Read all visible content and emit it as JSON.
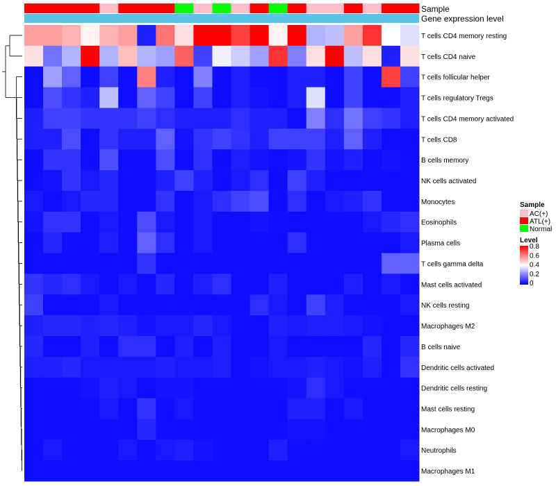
{
  "chart_data": {
    "type": "heatmap",
    "title": "",
    "annotation_labels": [
      "Sample",
      "Gene expression level"
    ],
    "rows": [
      "T cells CD4 memory resting",
      "T cells CD4 naive",
      "T cells follicular helper",
      "T cells regulatory  Tregs",
      "T cells CD4 memory activated",
      "T cells CD8",
      "B cells memory",
      "NK cells activated",
      "Monocytes",
      "Eosinophils",
      "Plasma cells",
      "T cells gamma delta",
      "Mast cells activated",
      "NK cells resting",
      "Macrophages M2",
      "B cells naive",
      "Dendritic cells activated",
      "Dendritic cells resting",
      "Mast cells resting",
      "Macrophages M0",
      "Neutrophils",
      "Macrophages M1"
    ],
    "samples": [
      "ATL(+)",
      "ATL(+)",
      "ATL(+)",
      "ATL(+)",
      "AC(+)",
      "ATL(+)",
      "ATL(+)",
      "ATL(+)",
      "Normal",
      "AC(+)",
      "Normal",
      "AC(+)",
      "ATL(+)",
      "Normal",
      "ATL(+)",
      "AC(+)",
      "AC(+)",
      "ATL(+)",
      "AC(+)",
      "ATL(+)",
      "ATL(+)"
    ],
    "sample_colors": {
      "AC(+)": "#ffc0cb",
      "ATL(+)": "#ff0000",
      "Normal": "#00ff00"
    },
    "level_color": "#5bc4e6",
    "values": [
      [
        0.55,
        0.55,
        0.52,
        0.42,
        0.52,
        0.55,
        0.05,
        0.62,
        0.45,
        0.8,
        0.8,
        0.7,
        0.8,
        0.42,
        0.8,
        0.28,
        0.3,
        0.55,
        0.72,
        0.4,
        0.35
      ],
      [
        0.45,
        0.18,
        0.28,
        0.8,
        0.28,
        0.5,
        0.28,
        0.25,
        0.65,
        0.1,
        0.38,
        0.32,
        0.25,
        0.72,
        0.2,
        0.45,
        0.8,
        0.3,
        0.45,
        0.05,
        0.45
      ],
      [
        0.02,
        0.25,
        0.15,
        0.02,
        0.1,
        0.02,
        0.6,
        0.05,
        0.02,
        0.2,
        0.02,
        0.05,
        0.02,
        0.02,
        0.05,
        0.05,
        0.02,
        0.1,
        0.02,
        0.7,
        0.1
      ],
      [
        0.02,
        0.12,
        0.08,
        0.05,
        0.3,
        0.02,
        0.15,
        0.1,
        0.02,
        0.1,
        0.02,
        0.05,
        0.03,
        0.02,
        0.05,
        0.35,
        0.02,
        0.1,
        0.02,
        0.02,
        0.05
      ],
      [
        0.05,
        0.1,
        0.1,
        0.08,
        0.08,
        0.08,
        0.1,
        0.07,
        0.05,
        0.05,
        0.05,
        0.07,
        0.05,
        0.05,
        0.02,
        0.2,
        0.07,
        0.18,
        0.1,
        0.08,
        0.05
      ],
      [
        0.05,
        0.05,
        0.12,
        0.02,
        0.08,
        0.05,
        0.05,
        0.15,
        0.03,
        0.08,
        0.1,
        0.08,
        0.05,
        0.1,
        0.1,
        0.1,
        0.05,
        0.15,
        0.05,
        0.02,
        0.02
      ],
      [
        0.02,
        0.08,
        0.08,
        0.02,
        0.12,
        0.02,
        0.02,
        0.12,
        0.02,
        0.07,
        0.02,
        0.05,
        0.03,
        0.02,
        0.03,
        0.08,
        0.03,
        0.05,
        0.02,
        0.03,
        0.02
      ],
      [
        0.02,
        0.03,
        0.08,
        0.04,
        0.06,
        0.02,
        0.02,
        0.05,
        0.1,
        0.05,
        0.02,
        0.04,
        0.07,
        0.02,
        0.1,
        0.05,
        0.02,
        0.02,
        0.02,
        0.02,
        0.02
      ],
      [
        0.04,
        0.02,
        0.04,
        0.06,
        0.06,
        0.02,
        0.02,
        0.08,
        0.02,
        0.04,
        0.07,
        0.1,
        0.12,
        0.02,
        0.07,
        0.02,
        0.04,
        0.05,
        0.08,
        0.02,
        0.02
      ],
      [
        0.03,
        0.08,
        0.08,
        0.02,
        0.04,
        0.02,
        0.12,
        0.04,
        0.02,
        0.04,
        0.02,
        0.02,
        0.03,
        0.02,
        0.02,
        0.02,
        0.02,
        0.02,
        0.04,
        0.06,
        0.07
      ],
      [
        0.02,
        0.06,
        0.02,
        0.02,
        0.05,
        0.02,
        0.15,
        0.07,
        0.02,
        0.04,
        0.02,
        0.02,
        0.02,
        0.02,
        0.07,
        0.02,
        0.02,
        0.02,
        0.02,
        0.02,
        0.04
      ],
      [
        0.02,
        0.02,
        0.02,
        0.02,
        0.02,
        0.02,
        0.08,
        0.02,
        0.02,
        0.02,
        0.02,
        0.02,
        0.02,
        0.02,
        0.02,
        0.02,
        0.02,
        0.02,
        0.02,
        0.15,
        0.15
      ],
      [
        0.08,
        0.06,
        0.07,
        0.04,
        0.02,
        0.04,
        0.02,
        0.06,
        0.02,
        0.05,
        0.07,
        0.02,
        0.02,
        0.05,
        0.02,
        0.02,
        0.02,
        0.05,
        0.02,
        0.04,
        0.02
      ],
      [
        0.1,
        0.02,
        0.02,
        0.02,
        0.04,
        0.02,
        0.02,
        0.02,
        0.02,
        0.02,
        0.02,
        0.02,
        0.07,
        0.04,
        0.02,
        0.1,
        0.05,
        0.02,
        0.02,
        0.02,
        0.04
      ],
      [
        0.05,
        0.06,
        0.06,
        0.05,
        0.06,
        0.05,
        0.03,
        0.04,
        0.04,
        0.06,
        0.04,
        0.02,
        0.02,
        0.05,
        0.04,
        0.05,
        0.05,
        0.04,
        0.03,
        0.02,
        0.02
      ],
      [
        0.06,
        0.02,
        0.02,
        0.05,
        0.02,
        0.07,
        0.07,
        0.02,
        0.05,
        0.02,
        0.05,
        0.02,
        0.02,
        0.04,
        0.02,
        0.02,
        0.02,
        0.02,
        0.06,
        0.02,
        0.06
      ],
      [
        0.05,
        0.05,
        0.06,
        0.04,
        0.04,
        0.04,
        0.04,
        0.05,
        0.04,
        0.04,
        0.05,
        0.02,
        0.03,
        0.04,
        0.04,
        0.05,
        0.04,
        0.03,
        0.05,
        0.02,
        0.08
      ],
      [
        0.02,
        0.02,
        0.02,
        0.03,
        0.05,
        0.04,
        0.02,
        0.03,
        0.03,
        0.02,
        0.02,
        0.02,
        0.02,
        0.02,
        0.03,
        0.07,
        0.04,
        0.02,
        0.02,
        0.02,
        0.02
      ],
      [
        0.02,
        0.02,
        0.02,
        0.02,
        0.04,
        0.02,
        0.08,
        0.02,
        0.04,
        0.02,
        0.02,
        0.02,
        0.02,
        0.02,
        0.05,
        0.05,
        0.02,
        0.04,
        0.02,
        0.02,
        0.02
      ],
      [
        0.02,
        0.02,
        0.02,
        0.02,
        0.02,
        0.02,
        0.06,
        0.02,
        0.02,
        0.02,
        0.02,
        0.02,
        0.02,
        0.02,
        0.03,
        0.03,
        0.02,
        0.02,
        0.02,
        0.02,
        0.02
      ],
      [
        0.02,
        0.04,
        0.02,
        0.02,
        0.02,
        0.04,
        0.02,
        0.04,
        0.05,
        0.03,
        0.02,
        0.02,
        0.02,
        0.05,
        0.02,
        0.02,
        0.02,
        0.02,
        0.02,
        0.02,
        0.04
      ],
      [
        0.02,
        0.02,
        0.02,
        0.02,
        0.02,
        0.02,
        0.02,
        0.02,
        0.02,
        0.02,
        0.02,
        0.02,
        0.02,
        0.02,
        0.02,
        0.02,
        0.02,
        0.02,
        0.02,
        0.02,
        0.02
      ]
    ],
    "legend": {
      "sample_title": "Sample",
      "sample_entries": [
        "AC(+)",
        "ATL(+)",
        "Normal"
      ],
      "level_title": "Level",
      "level_ticks": [
        "0.8",
        "0.6",
        "0.4",
        "0.2",
        "0"
      ],
      "level_range": [
        0,
        0.8
      ],
      "level_colors": [
        "#0000ff",
        "#ffffff",
        "#ff0000"
      ]
    }
  }
}
